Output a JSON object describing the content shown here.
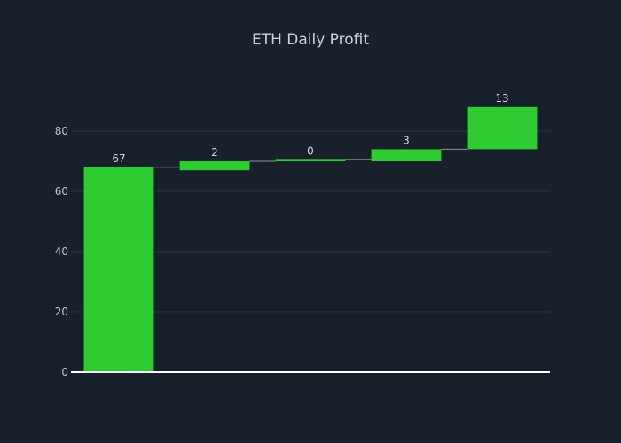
{
  "chart_data": {
    "type": "bar",
    "subtype": "waterfall",
    "title": "ETH Daily Profit",
    "xlabel": "",
    "ylabel": "",
    "categories": [
      "",
      "",
      "",
      "",
      ""
    ],
    "values": [
      67,
      2,
      0,
      3,
      13
    ],
    "bar_starts": [
      0,
      67,
      70,
      70,
      74
    ],
    "bar_ends": [
      68,
      70,
      70.5,
      74,
      88
    ],
    "data_labels": [
      "67",
      "2",
      "0",
      "3",
      "13"
    ],
    "ylim": [
      0,
      100
    ],
    "yticks": [
      0,
      20,
      40,
      60,
      80
    ],
    "ytick_labels": [
      "0",
      "20",
      "40",
      "60",
      "80"
    ],
    "grid": true,
    "legend": "none",
    "colors": {
      "background": "#17202b",
      "bar": "#2ecc31",
      "grid": "#2a3440",
      "zero_line": "#ffffff",
      "connector": "#8a939c"
    }
  }
}
